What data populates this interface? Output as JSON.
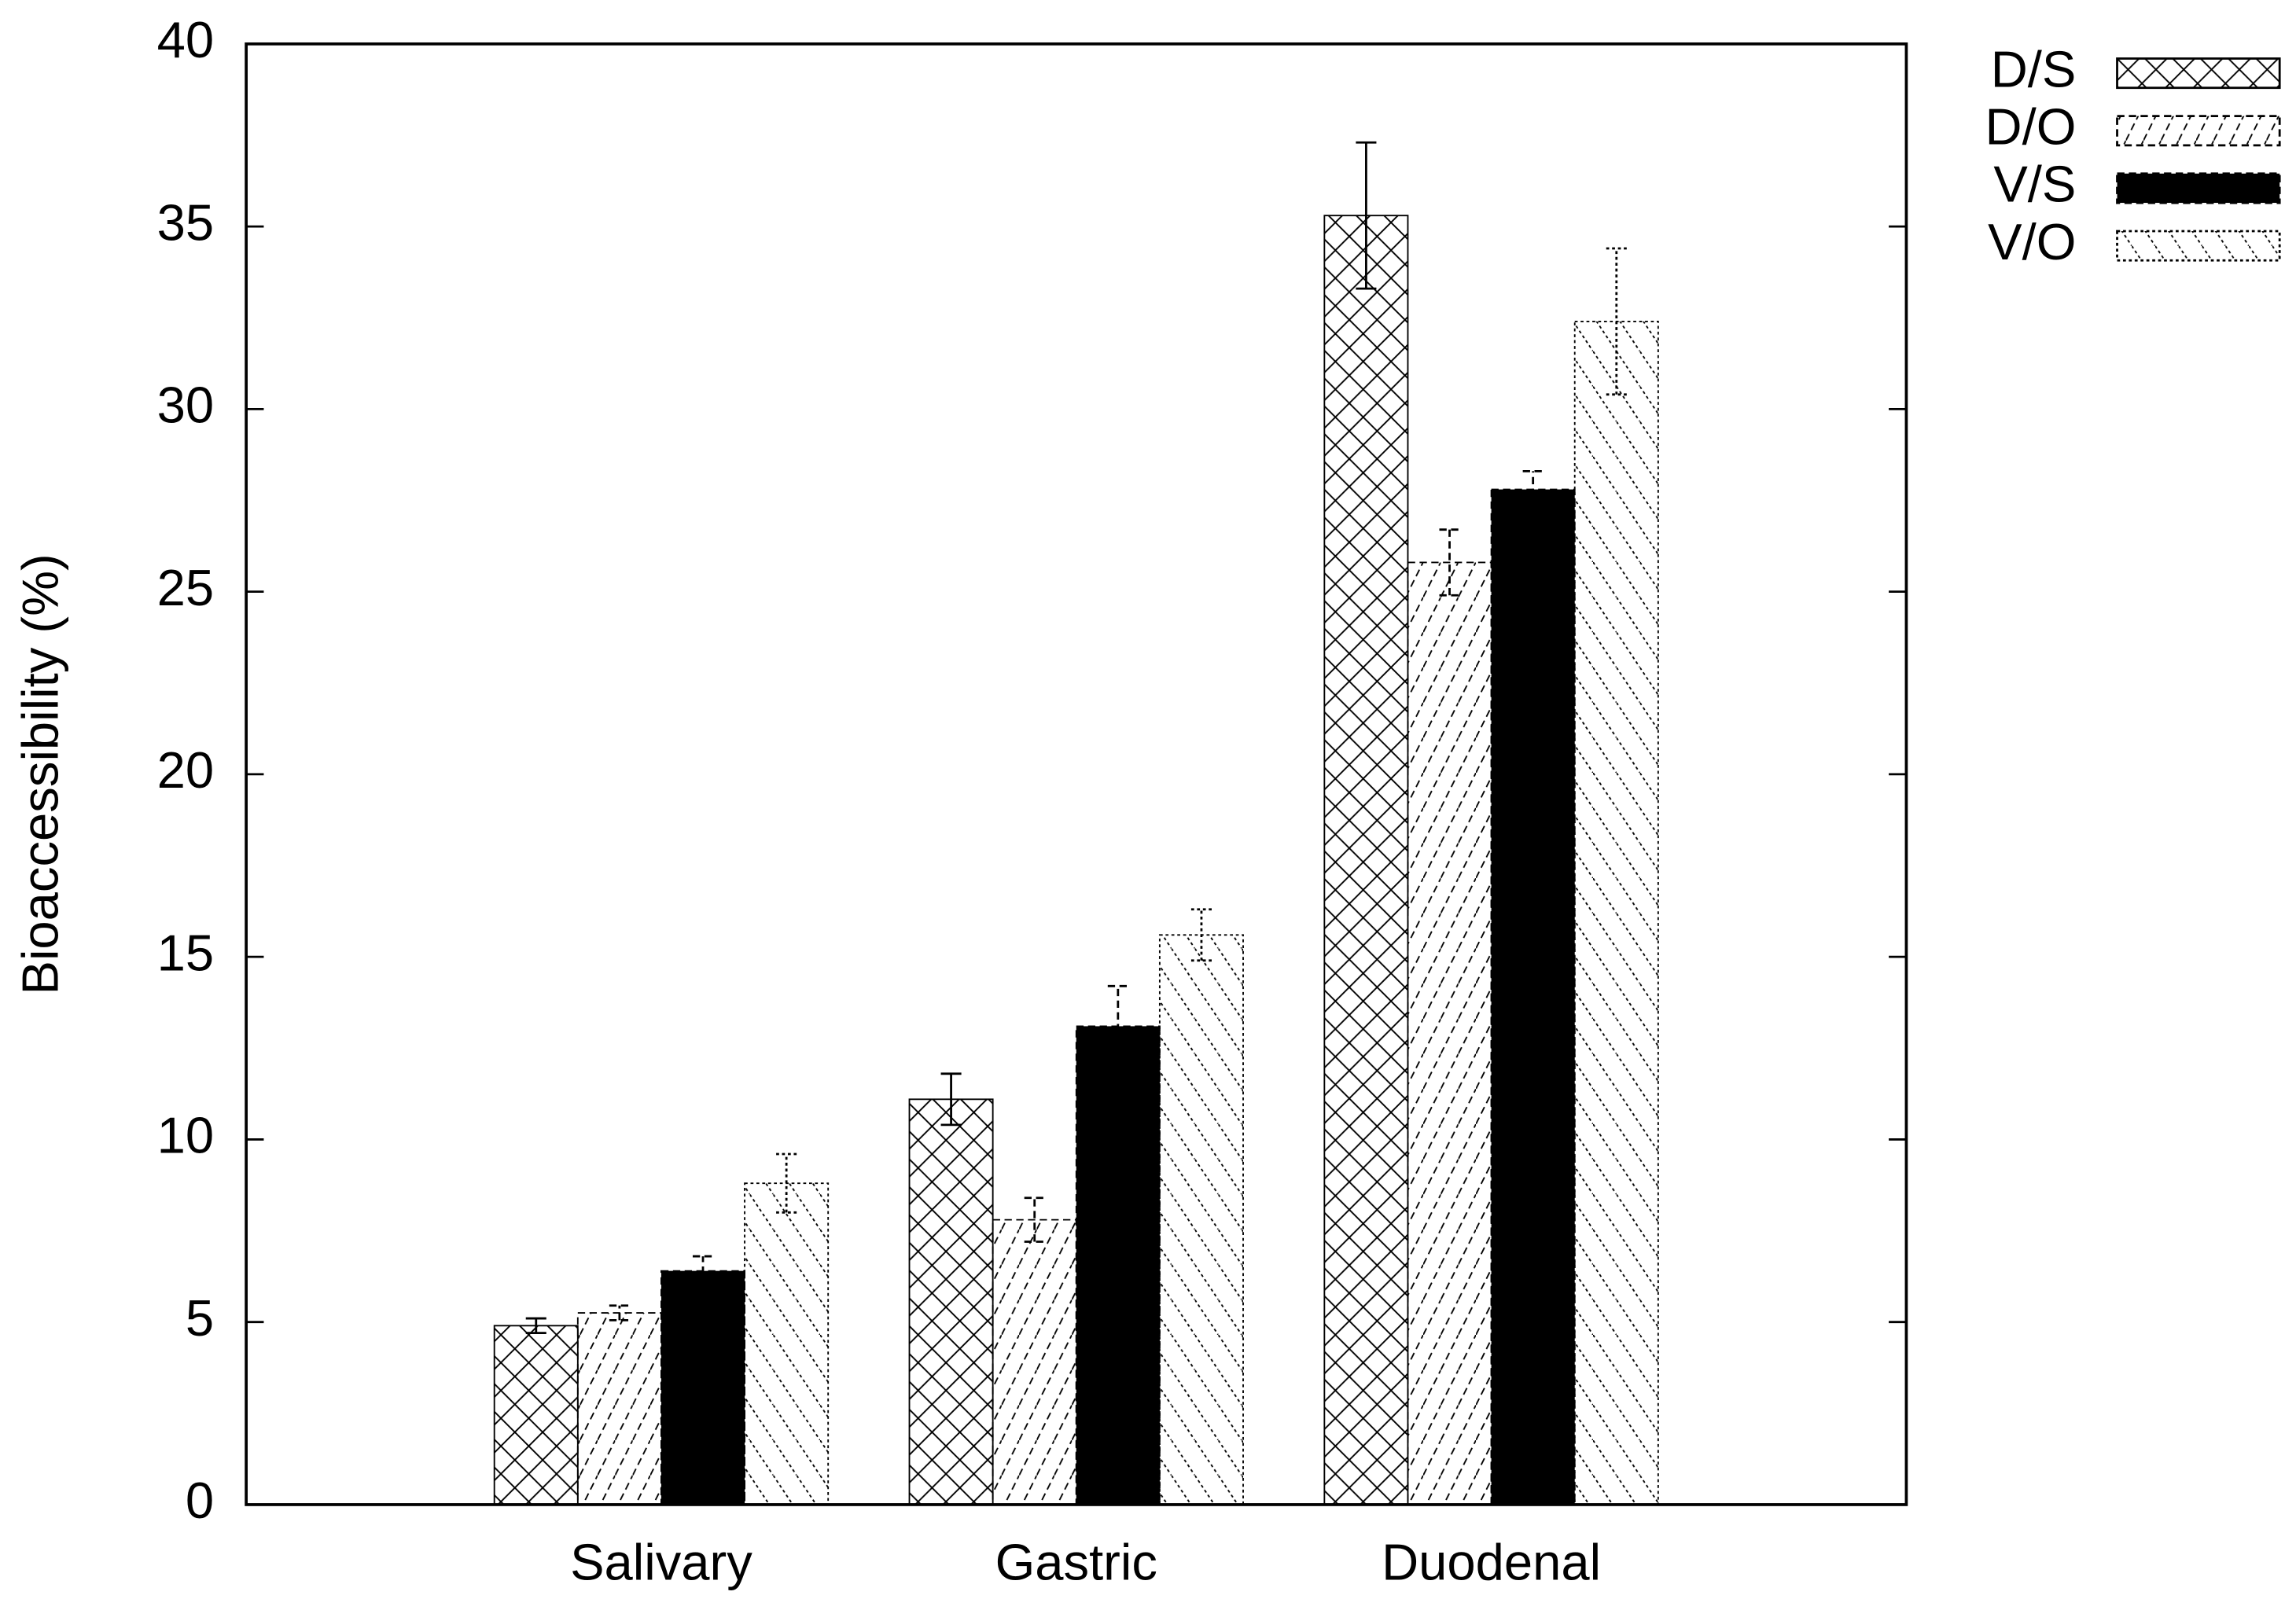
{
  "chart_data": {
    "type": "bar",
    "y_label": "Bioaccessibility (%)",
    "categories": [
      "Salivary",
      "Gastric",
      "Duodenal"
    ],
    "series": [
      {
        "name": "D/S",
        "color": "#000000",
        "pattern": "crosshatch",
        "values": [
          4.9,
          11.1,
          35.3
        ],
        "errors": [
          0.2,
          0.7,
          2.0
        ]
      },
      {
        "name": "D/O",
        "color": "#000000",
        "pattern": "forward-dashed",
        "values": [
          5.25,
          7.8,
          25.8
        ],
        "errors": [
          0.2,
          0.6,
          0.9
        ]
      },
      {
        "name": "V/S",
        "color": "#000000",
        "pattern": "solid",
        "values": [
          6.4,
          13.1,
          27.8
        ],
        "errors": [
          0.4,
          1.1,
          0.5
        ]
      },
      {
        "name": "V/O",
        "color": "#000000",
        "pattern": "back-dotted",
        "values": [
          8.8,
          15.6,
          32.4
        ],
        "errors": [
          0.8,
          0.7,
          2.0
        ]
      }
    ],
    "ylim": [
      0,
      40
    ],
    "yticks": [
      0,
      5,
      10,
      15,
      20,
      25,
      30,
      35,
      40
    ],
    "legend": "outside-top-right"
  }
}
